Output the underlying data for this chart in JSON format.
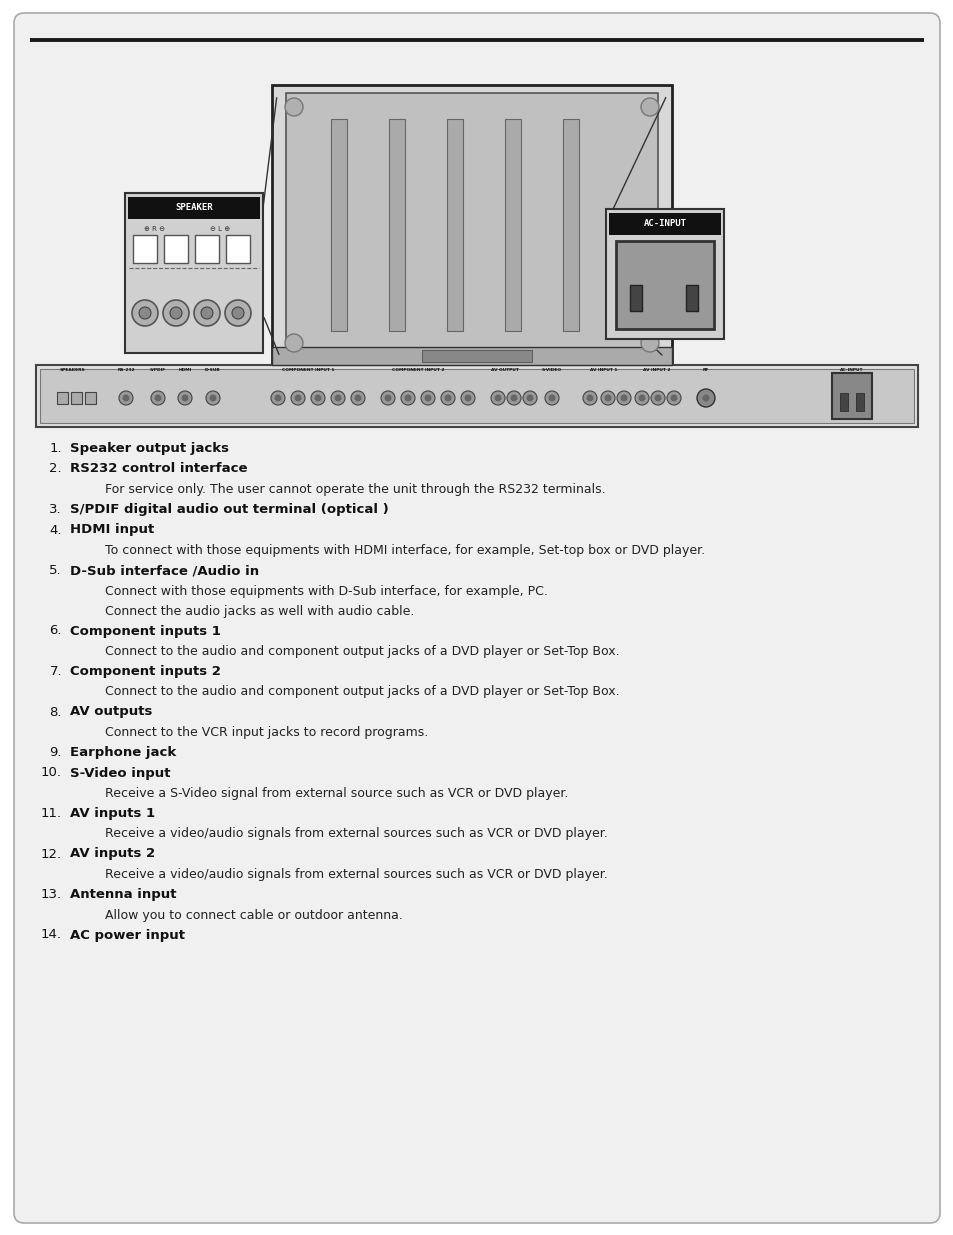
{
  "bg_color": "#f2f2f2",
  "border_color": "#888888",
  "top_line_color": "#1a1a1a",
  "items": [
    {
      "num": "1.",
      "bold": "Speaker output jacks",
      "normal": "",
      "indent": false
    },
    {
      "num": "2.",
      "bold": "RS232 control interface",
      "normal": "",
      "indent": false
    },
    {
      "num": "",
      "bold": "",
      "normal": "For service only. The user cannot operate the unit through the RS232 terminals.",
      "indent": true
    },
    {
      "num": "3.",
      "bold": "S/PDIF digital audio out terminal (optical )",
      "normal": "",
      "indent": false
    },
    {
      "num": "4.",
      "bold": "HDMI input",
      "normal": "",
      "indent": false
    },
    {
      "num": "",
      "bold": "",
      "normal": "To connect with those equipments with HDMI interface, for example, Set-top box or DVD player.",
      "indent": true
    },
    {
      "num": "5.",
      "bold": "D-Sub interface /Audio in",
      "normal": "",
      "indent": false
    },
    {
      "num": "",
      "bold": "",
      "normal": "Connect with those equipments with D-Sub interface, for example, PC.",
      "indent": true
    },
    {
      "num": "",
      "bold": "",
      "normal": "Connect the audio jacks as well with audio cable.",
      "indent": true
    },
    {
      "num": "6.",
      "bold": "Component inputs 1",
      "normal": "",
      "indent": false
    },
    {
      "num": "",
      "bold": "",
      "normal": "Connect to the audio and component output jacks of a DVD player or Set-Top Box.",
      "indent": true
    },
    {
      "num": "7.",
      "bold": "Component inputs 2",
      "normal": "",
      "indent": false
    },
    {
      "num": "",
      "bold": "",
      "normal": "Connect to the audio and component output jacks of a DVD player or Set-Top Box.",
      "indent": true
    },
    {
      "num": "8.",
      "bold": "AV outputs",
      "normal": "",
      "indent": false
    },
    {
      "num": "",
      "bold": "",
      "normal": "Connect to the VCR input jacks to record programs.",
      "indent": true
    },
    {
      "num": "9.",
      "bold": "Earphone jack",
      "normal": "",
      "indent": false
    },
    {
      "num": "10.",
      "bold": "S-Video input",
      "normal": "",
      "indent": false
    },
    {
      "num": "",
      "bold": "",
      "normal": "Receive a S-Video signal from external source such as VCR or DVD player.",
      "indent": true
    },
    {
      "num": "11.",
      "bold": "AV inputs 1",
      "normal": "",
      "indent": false
    },
    {
      "num": "",
      "bold": "",
      "normal": "Receive a video/audio signals from external sources such as VCR or DVD player.",
      "indent": true
    },
    {
      "num": "12.",
      "bold": "AV inputs 2",
      "normal": "",
      "indent": false
    },
    {
      "num": "",
      "bold": "",
      "normal": "Receive a video/audio signals from external sources such as VCR or DVD player.",
      "indent": true
    },
    {
      "num": "13.",
      "bold": "Antenna input",
      "normal": "",
      "indent": false
    },
    {
      "num": "",
      "bold": "",
      "normal": "Allow you to connect cable or outdoor antenna.",
      "indent": true
    },
    {
      "num": "14.",
      "bold": "AC power input",
      "normal": "",
      "indent": false
    }
  ]
}
